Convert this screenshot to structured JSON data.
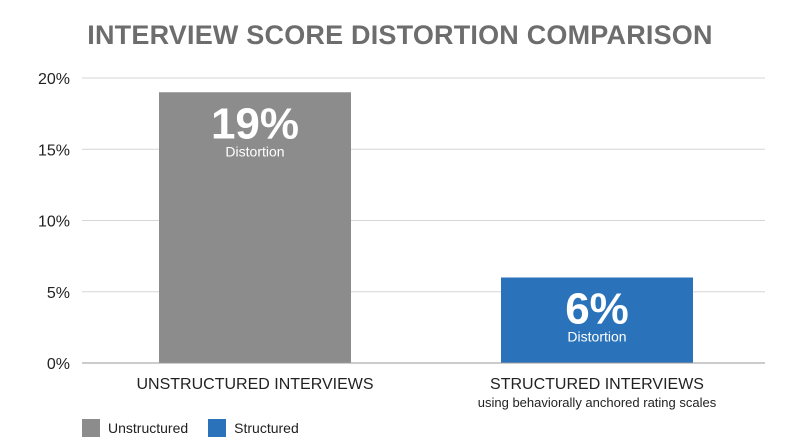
{
  "chart_data": {
    "type": "bar",
    "title": "INTERVIEW SCORE DISTORTION COMPARISON",
    "categories": [
      "UNSTRUCTURED INTERVIEWS",
      "STRUCTURED INTERVIEWS"
    ],
    "category_sublabels": [
      "",
      "using behaviorally anchored rating scales"
    ],
    "values": [
      19,
      6
    ],
    "bar_value_labels": [
      "19%",
      "6%"
    ],
    "bar_sub_labels": [
      "Distortion",
      "Distortion"
    ],
    "colors": [
      "#8c8c8c",
      "#2a73ba"
    ],
    "ylim": [
      0,
      20
    ],
    "yticks": [
      0,
      5,
      10,
      15,
      20
    ],
    "ytick_labels": [
      "0%",
      "5%",
      "10%",
      "15%",
      "20%"
    ],
    "grid": true,
    "legend": {
      "placement": "bottom-left",
      "items": [
        {
          "label": "Unstructured",
          "color": "#8c8c8c"
        },
        {
          "label": "Structured",
          "color": "#2a73ba"
        }
      ]
    }
  }
}
